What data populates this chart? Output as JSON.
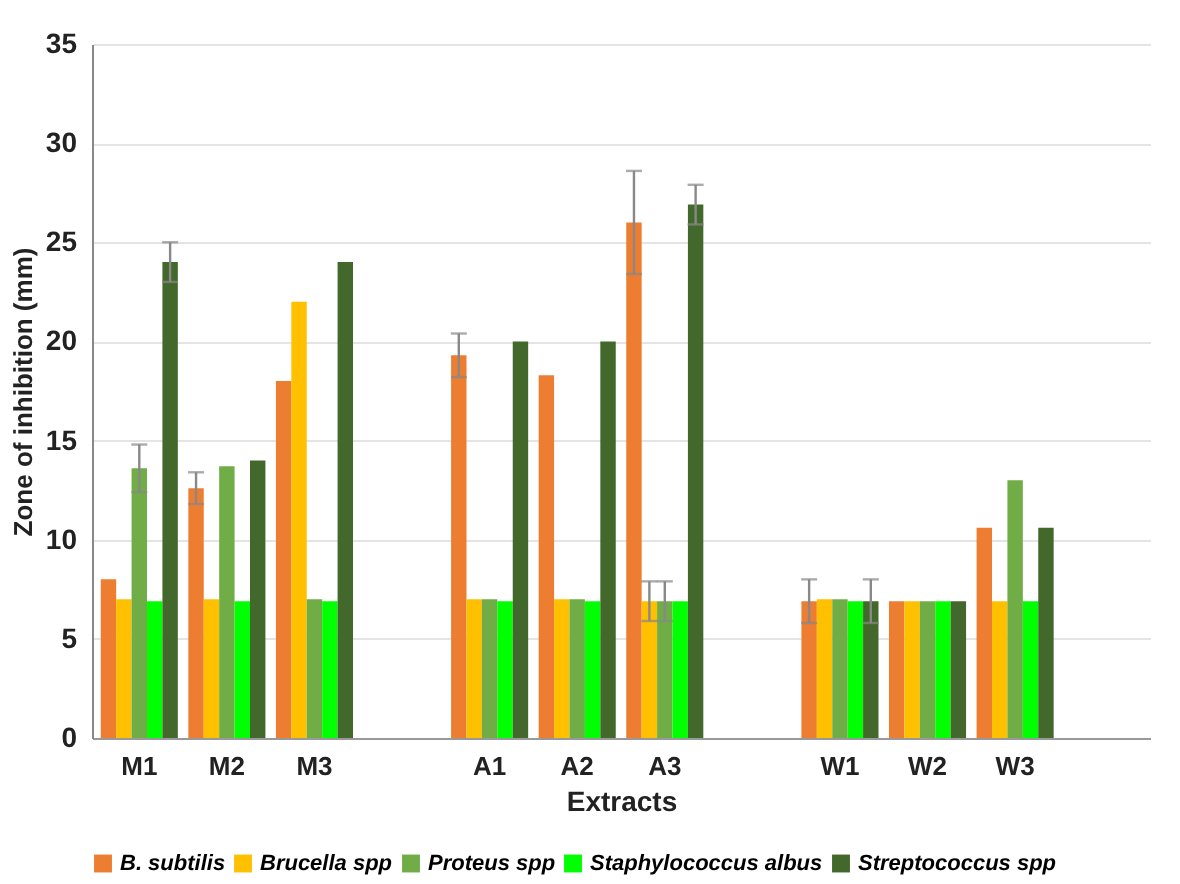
{
  "chart_data": {
    "type": "bar",
    "xlabel": "Extracts",
    "ylabel": "Zone of inhibition (mm)",
    "categories": [
      "M1",
      "M2",
      "M3",
      null,
      "A1",
      "A2",
      "A3",
      null,
      "W1",
      "W2",
      "W3",
      null
    ],
    "series": [
      {
        "name": "B. subtilis",
        "color": "#ed7d31",
        "values": [
          8,
          12.6,
          18,
          null,
          19.3,
          18.3,
          26,
          null,
          6.9,
          6.9,
          10.6,
          null
        ],
        "errors": [
          null,
          0.8,
          null,
          null,
          1.1,
          null,
          2.6,
          null,
          1.1,
          null,
          null,
          null
        ]
      },
      {
        "name": "Brucella spp",
        "color": "#ffc000",
        "values": [
          7,
          7,
          22,
          null,
          7,
          7,
          6.9,
          null,
          7,
          6.9,
          6.9,
          null
        ],
        "errors": [
          null,
          null,
          null,
          null,
          null,
          null,
          1,
          null,
          null,
          null,
          null,
          null
        ]
      },
      {
        "name": "Proteus spp",
        "color": "#70ad47",
        "values": [
          13.6,
          13.7,
          7,
          null,
          7,
          7,
          6.9,
          null,
          7,
          6.9,
          13,
          null
        ],
        "errors": [
          1.2,
          null,
          null,
          null,
          null,
          null,
          1,
          null,
          null,
          null,
          null,
          null
        ]
      },
      {
        "name": "Staphylococcus albus",
        "color": "#00ff00",
        "values": [
          6.9,
          6.9,
          6.9,
          null,
          6.9,
          6.9,
          6.9,
          null,
          6.9,
          6.9,
          6.9,
          null
        ]
      },
      {
        "name": "Streptococcus spp",
        "color": "#43682b",
        "values": [
          24,
          14,
          24,
          null,
          20,
          20,
          26.9,
          null,
          6.9,
          6.9,
          10.6,
          null
        ],
        "errors": [
          1,
          null,
          null,
          null,
          null,
          null,
          1,
          null,
          1.1,
          null,
          null,
          null
        ]
      }
    ],
    "ylim": [
      0,
      35
    ],
    "yticks": [
      0,
      5,
      10,
      15,
      20,
      25,
      30,
      35
    ],
    "grid": "y",
    "legend": "bottom"
  }
}
